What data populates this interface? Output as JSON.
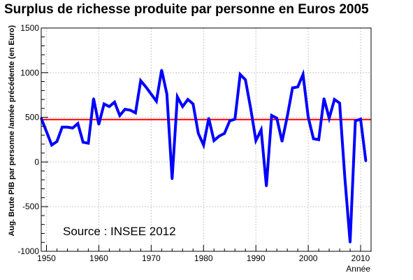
{
  "chart_data": {
    "type": "line",
    "title": "Surplus de richesse produite par personne en Euros 2005",
    "xlabel": "Année",
    "ylabel": "Aug. Brute PIB par personne /année précédente (en Euro)",
    "annotation": "Source : INSEE 2012",
    "xlim": [
      1949,
      2012
    ],
    "ylim": [
      -1000,
      1500
    ],
    "x_ticks": [
      "1950",
      "1960",
      "1970",
      "1980",
      "1990",
      "2000",
      "2010"
    ],
    "x_tick_values": [
      1950,
      1960,
      1970,
      1980,
      1990,
      2000,
      2010
    ],
    "y_ticks": [
      "-1000",
      "-500",
      "0",
      "500",
      "1000",
      "1500"
    ],
    "y_tick_values": [
      -1000,
      -500,
      0,
      500,
      1000,
      1500
    ],
    "grid": true,
    "reference_line": {
      "y": 475,
      "color": "#ff0000"
    },
    "series": [
      {
        "color": "#0000ff",
        "x": [
          1949,
          1950,
          1951,
          1952,
          1953,
          1954,
          1955,
          1956,
          1957,
          1958,
          1959,
          1960,
          1961,
          1962,
          1963,
          1964,
          1965,
          1966,
          1967,
          1968,
          1969,
          1970,
          1971,
          1972,
          1973,
          1974,
          1975,
          1976,
          1977,
          1978,
          1979,
          1980,
          1981,
          1982,
          1983,
          1984,
          1985,
          1986,
          1987,
          1988,
          1989,
          1990,
          1991,
          1992,
          1993,
          1994,
          1995,
          1996,
          1997,
          1998,
          1999,
          2000,
          2001,
          2002,
          2003,
          2004,
          2005,
          2006,
          2007,
          2008,
          2009,
          2010,
          2011
        ],
        "values": [
          490,
          340,
          190,
          230,
          390,
          390,
          380,
          430,
          220,
          210,
          710,
          420,
          650,
          620,
          670,
          520,
          590,
          580,
          550,
          910,
          840,
          760,
          680,
          1030,
          760,
          -190,
          730,
          620,
          700,
          650,
          320,
          190,
          490,
          240,
          290,
          320,
          460,
          480,
          980,
          920,
          600,
          240,
          360,
          -270,
          520,
          490,
          230,
          510,
          830,
          840,
          980,
          500,
          260,
          250,
          710,
          490,
          700,
          660,
          -180,
          -900,
          460,
          480,
          10
        ]
      }
    ]
  }
}
